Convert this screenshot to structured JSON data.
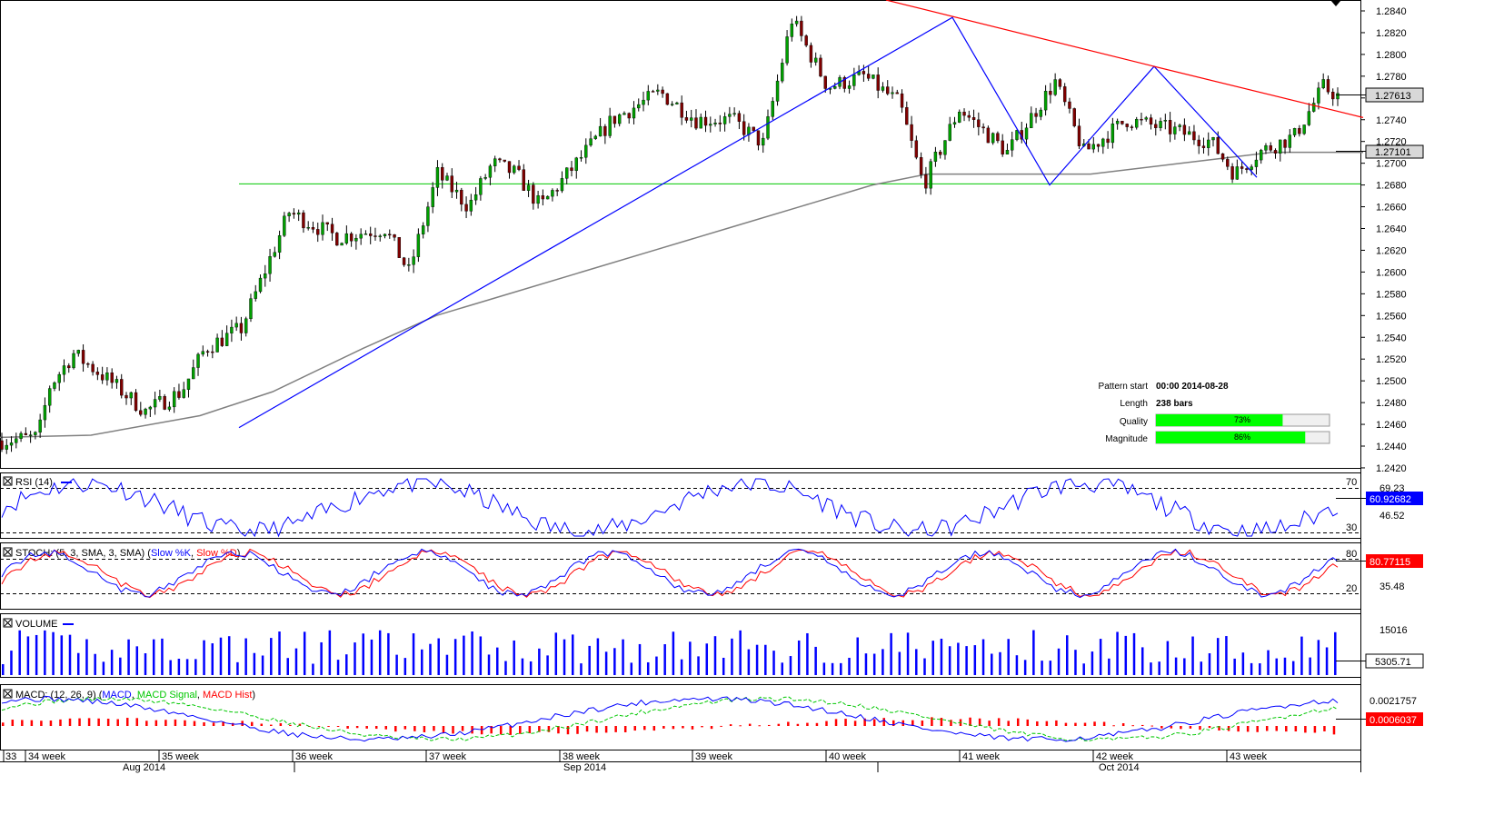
{
  "chart_data": {
    "type": "candlestick",
    "price_panel": {
      "ylim": [
        1.242,
        1.285
      ],
      "y_ticks": [
        "1.2840",
        "1.2820",
        "1.2800",
        "1.2780",
        "1.2760",
        "1.2740",
        "1.2720",
        "1.2700",
        "1.2680",
        "1.2660",
        "1.2640",
        "1.2620",
        "1.2600",
        "1.2580",
        "1.2560",
        "1.2540",
        "1.2520",
        "1.2500",
        "1.2480",
        "1.2460",
        "1.2440",
        "1.2420"
      ],
      "current_price": "1.27613",
      "sma_value": "1.27101",
      "support_level": 1.2681,
      "bars": 238,
      "anchors": [
        [
          0,
          1.2445
        ],
        [
          15,
          1.2448
        ],
        [
          20,
          1.2495
        ],
        [
          30,
          1.2525
        ],
        [
          45,
          1.25
        ],
        [
          60,
          1.2472
        ],
        [
          75,
          1.249
        ],
        [
          85,
          1.253
        ],
        [
          100,
          1.2548
        ],
        [
          120,
          1.2655
        ],
        [
          140,
          1.2632
        ],
        [
          160,
          1.264
        ],
        [
          170,
          1.26
        ],
        [
          182,
          1.269
        ],
        [
          195,
          1.266
        ],
        [
          205,
          1.27
        ],
        [
          215,
          1.269
        ],
        [
          225,
          1.266
        ],
        [
          240,
          1.27
        ],
        [
          255,
          1.274
        ],
        [
          275,
          1.2765
        ],
        [
          290,
          1.274
        ],
        [
          305,
          1.274
        ],
        [
          318,
          1.2718
        ],
        [
          330,
          1.2832
        ],
        [
          345,
          1.277
        ],
        [
          360,
          1.278
        ],
        [
          375,
          1.2755
        ],
        [
          385,
          1.268
        ],
        [
          400,
          1.275
        ],
        [
          420,
          1.271
        ],
        [
          440,
          1.2775
        ],
        [
          452,
          1.271
        ],
        [
          470,
          1.274
        ],
        [
          490,
          1.273
        ],
        [
          505,
          1.272
        ],
        [
          515,
          1.269
        ],
        [
          525,
          1.271
        ],
        [
          540,
          1.2725
        ],
        [
          552,
          1.277
        ],
        [
          558,
          1.2762
        ]
      ],
      "sma_anchors": [
        [
          0,
          1.2448
        ],
        [
          100,
          1.245
        ],
        [
          220,
          1.2468
        ],
        [
          300,
          1.249
        ],
        [
          400,
          1.253
        ],
        [
          480,
          1.256
        ],
        [
          560,
          1.258
        ],
        [
          640,
          1.26
        ],
        [
          720,
          1.262
        ],
        [
          800,
          1.264
        ],
        [
          880,
          1.266
        ],
        [
          960,
          1.268
        ],
        [
          1020,
          1.269
        ],
        [
          1200,
          1.269
        ],
        [
          1300,
          1.27
        ],
        [
          1400,
          1.271
        ],
        [
          1500,
          1.271
        ]
      ],
      "trend_lines": {
        "blue": [
          [
            263,
            1.2457
          ],
          [
            1048,
            1.2834
          ],
          [
            1155,
            1.268
          ],
          [
            1270,
            1.2789
          ],
          [
            1383,
            1.2687
          ]
        ],
        "red": [
          [
            975,
            1.285
          ],
          [
            1270,
            1.2789
          ],
          [
            1500,
            1.2742
          ]
        ]
      }
    },
    "pattern_info": {
      "pattern_start_label": "Pattern start",
      "pattern_start_value": "00:00 2014-08-28",
      "length_label": "Length",
      "length_value": "238 bars",
      "quality_label": "Quality",
      "quality_value": "73%",
      "quality": 0.73,
      "magnitude_label": "Magnitude",
      "magnitude_value": "86%",
      "magnitude": 0.86
    },
    "rsi": {
      "title": "RSI (14)",
      "levels": [
        "70",
        "30"
      ],
      "tick": "46.52",
      "current": "60.92682",
      "prev_label": "69.23"
    },
    "stoch": {
      "title_prefix": "STOCH: (5, 3, SMA, 3, SMA) (",
      "k_label": "Slow %K",
      "separator": ", ",
      "d_label": "Slow %D",
      "title_suffix": ")",
      "levels": [
        "80",
        "20"
      ],
      "tick": "35.48",
      "current": "80.77115"
    },
    "volume": {
      "title": "VOLUME",
      "tick": "15016",
      "current": "5305.71"
    },
    "macd": {
      "title_prefix": "MACD: (12, 26, 9) (",
      "macd_label": "MACD",
      "signal_label": "MACD Signal",
      "hist_label": "MACD Hist",
      "separator": ", ",
      "title_suffix": ")",
      "tick": "0.0021757",
      "current": "0.0006037"
    },
    "x_axis": {
      "week_labels": [
        "33",
        "34 week",
        "35 week",
        "36 week",
        "37 week",
        "38 week",
        "39 week",
        "40 week",
        "41 week",
        "42 week",
        "43 week"
      ],
      "month_labels": [
        "Aug 2014",
        "Sep 2014",
        "Oct 2014"
      ]
    },
    "colors": {
      "bull": "#00a000",
      "bear": "#800000",
      "sma": "#808080",
      "trend_blue": "#0000ff",
      "trend_red": "#ff0000",
      "support": "#00c800",
      "bar_fill": "#00ff00",
      "macd_hist": "#ff0000"
    }
  }
}
